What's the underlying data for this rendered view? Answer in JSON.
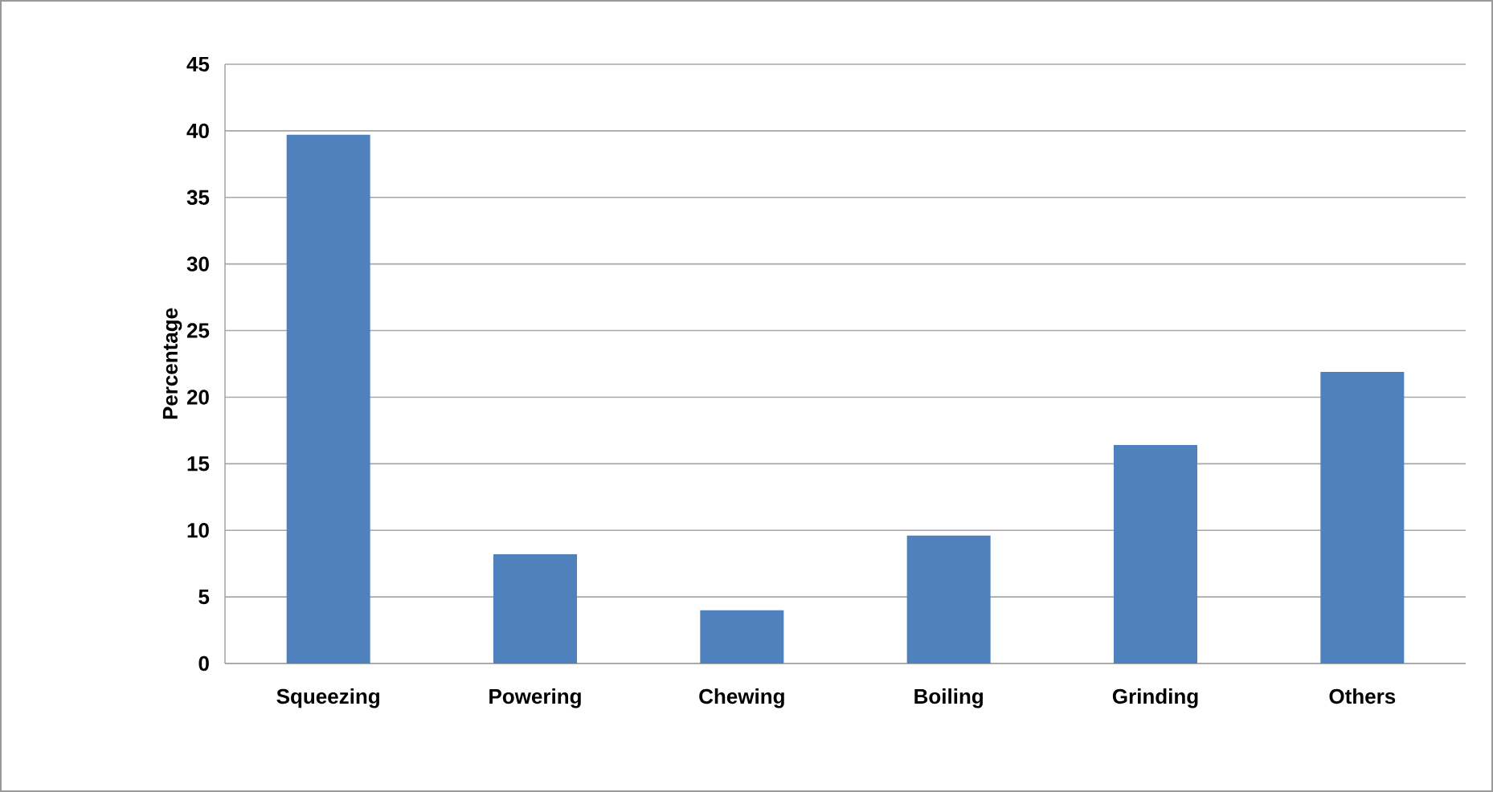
{
  "chart_data": {
    "type": "bar",
    "ylabel": "Percentage",
    "categories": [
      "Squeezing",
      "Powering",
      "Chewing",
      "Boiling",
      "Grinding",
      "Others"
    ],
    "values": [
      39.7,
      8.2,
      4.0,
      9.6,
      16.4,
      21.9
    ],
    "color": "#4f81bd",
    "ylim": [
      0,
      45
    ],
    "yticks": [
      0,
      5,
      10,
      15,
      20,
      25,
      30,
      35,
      40,
      45
    ],
    "grid": "y"
  }
}
